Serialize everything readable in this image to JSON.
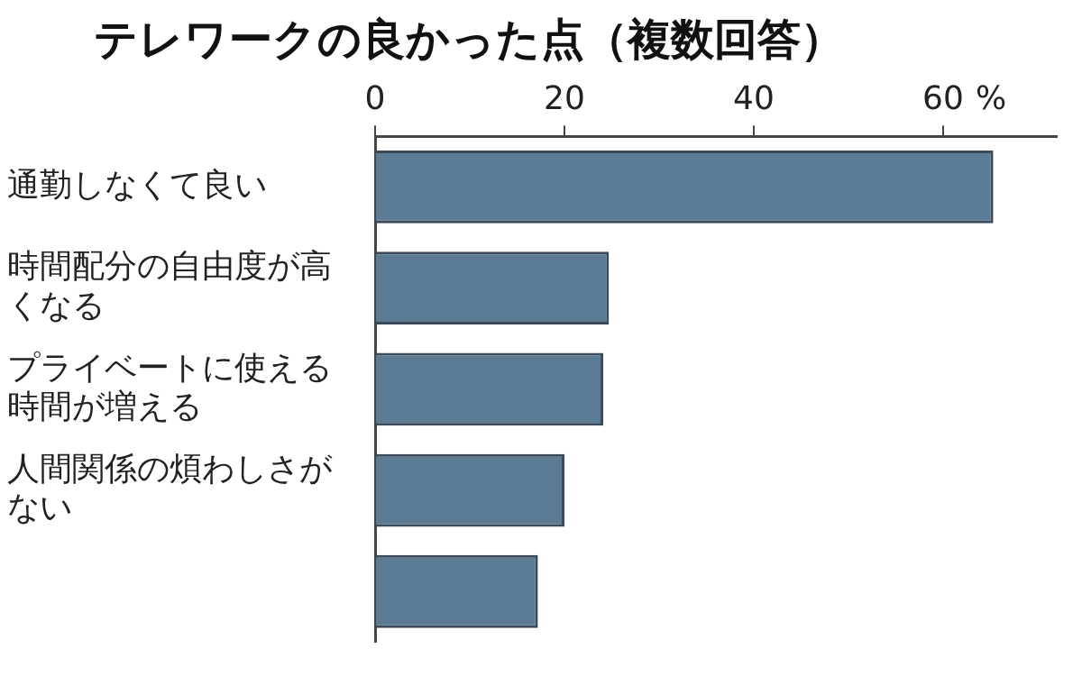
{
  "chart_data": {
    "type": "bar",
    "orientation": "horizontal",
    "title": "テレワークの良かった点（複数回答）",
    "xlabel": "%",
    "categories": [
      "通勤しなくて良い",
      "時間配分の自由度が高くなる",
      "プライベートに使える時間が増える",
      "人間関係の煩わしさがない",
      null
    ],
    "values": [
      65.3,
      24.7,
      24.1,
      20.0,
      17.2
    ],
    "color": "#5b7a94",
    "xlim": [
      0,
      72
    ],
    "xticks": [
      0,
      20,
      40,
      60
    ],
    "grid": false,
    "legend": false
  }
}
